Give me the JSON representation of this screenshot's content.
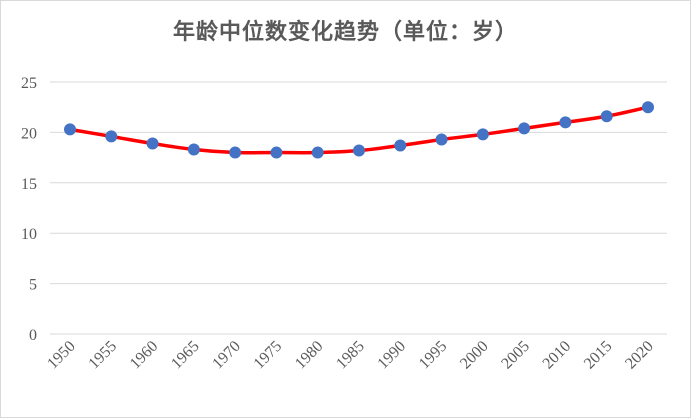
{
  "chart_data": {
    "type": "line",
    "title": "年龄中位数变化趋势（单位：岁）",
    "xlabel": "",
    "ylabel": "",
    "x": [
      "1950",
      "1955",
      "1960",
      "1965",
      "1970",
      "1975",
      "1980",
      "1985",
      "1990",
      "1995",
      "2000",
      "2005",
      "2010",
      "2015",
      "2020"
    ],
    "series": [
      {
        "values": [
          20.3,
          19.6,
          18.9,
          18.3,
          18.0,
          18.0,
          18.0,
          18.2,
          18.7,
          19.3,
          19.8,
          20.4,
          21.0,
          21.6,
          22.5
        ]
      }
    ],
    "yticks": [
      "0",
      "5",
      "10",
      "15",
      "20",
      "25"
    ],
    "ylim": [
      0,
      25
    ],
    "grid": "horizontal",
    "legend": "none",
    "colors": {
      "line": "#ff0000",
      "marker": "#4472c4",
      "grid": "#d9d9d9",
      "text": "#595959"
    }
  }
}
